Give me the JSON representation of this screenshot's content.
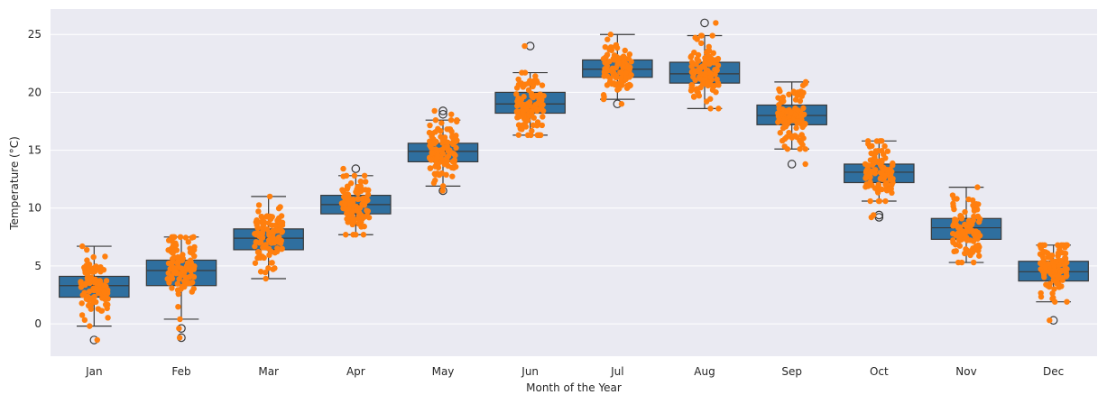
{
  "chart_data": {
    "type": "box",
    "xlabel": "Month of the Year",
    "ylabel": "Temperature (°C)",
    "ylim": [
      -2.8,
      27.2
    ],
    "yticks": [
      0,
      5,
      10,
      15,
      20,
      25
    ],
    "grid": true,
    "categories": [
      "Jan",
      "Feb",
      "Mar",
      "Apr",
      "May",
      "Jun",
      "Jul",
      "Aug",
      "Sep",
      "Oct",
      "Nov",
      "Dec"
    ],
    "box_color": "#2f6f9f",
    "point_color": "#ff7f0e",
    "background_color": "#eaeaf2",
    "boxes": [
      {
        "category": "Jan",
        "q1": 2.3,
        "median": 3.3,
        "q3": 4.1,
        "whisker_low": -0.2,
        "whisker_high": 6.7,
        "outliers": [
          -1.4
        ]
      },
      {
        "category": "Feb",
        "q1": 3.3,
        "median": 4.6,
        "q3": 5.5,
        "whisker_low": 0.4,
        "whisker_high": 7.5,
        "outliers": [
          -0.4,
          -1.2
        ]
      },
      {
        "category": "Mar",
        "q1": 6.4,
        "median": 7.4,
        "q3": 8.2,
        "whisker_low": 3.9,
        "whisker_high": 11.0,
        "outliers": []
      },
      {
        "category": "Apr",
        "q1": 9.5,
        "median": 10.3,
        "q3": 11.1,
        "whisker_low": 7.7,
        "whisker_high": 12.8,
        "outliers": [
          13.4
        ]
      },
      {
        "category": "May",
        "q1": 14.0,
        "median": 14.9,
        "q3": 15.6,
        "whisker_low": 11.9,
        "whisker_high": 17.6,
        "outliers": [
          18.4,
          18.1,
          11.5
        ]
      },
      {
        "category": "Jun",
        "q1": 18.2,
        "median": 19.0,
        "q3": 20.0,
        "whisker_low": 16.3,
        "whisker_high": 21.7,
        "outliers": [
          24.0
        ]
      },
      {
        "category": "Jul",
        "q1": 21.3,
        "median": 22.0,
        "q3": 22.8,
        "whisker_low": 19.4,
        "whisker_high": 25.0,
        "outliers": [
          19.0
        ]
      },
      {
        "category": "Aug",
        "q1": 20.8,
        "median": 21.6,
        "q3": 22.6,
        "whisker_low": 18.6,
        "whisker_high": 24.9,
        "outliers": [
          26.0
        ]
      },
      {
        "category": "Sep",
        "q1": 17.2,
        "median": 18.0,
        "q3": 18.9,
        "whisker_low": 15.1,
        "whisker_high": 20.9,
        "outliers": [
          13.8
        ]
      },
      {
        "category": "Oct",
        "q1": 12.2,
        "median": 13.1,
        "q3": 13.8,
        "whisker_low": 10.6,
        "whisker_high": 15.8,
        "outliers": [
          9.4,
          9.2
        ]
      },
      {
        "category": "Nov",
        "q1": 7.3,
        "median": 8.3,
        "q3": 9.1,
        "whisker_low": 5.3,
        "whisker_high": 11.8,
        "outliers": []
      },
      {
        "category": "Dec",
        "q1": 3.7,
        "median": 4.5,
        "q3": 5.4,
        "whisker_low": 1.9,
        "whisker_high": 6.8,
        "outliers": [
          0.3
        ]
      }
    ],
    "points_per_month": 100
  }
}
